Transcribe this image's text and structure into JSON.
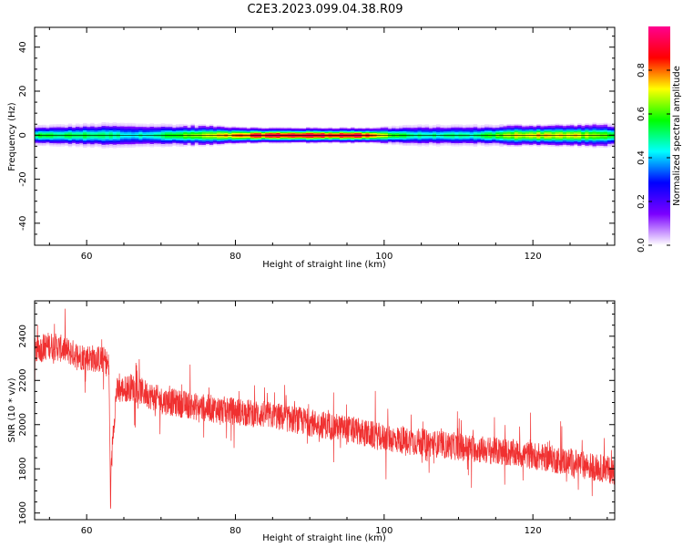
{
  "title": "C2E3.2023.099.04.38.R09",
  "chart_data": [
    {
      "type": "heatmap",
      "xlabel": "Height of straight line (km)",
      "ylabel": "Frequency (Hz)",
      "xlim": [
        53,
        131
      ],
      "ylim": [
        -50,
        49
      ],
      "xticks": [
        60,
        80,
        100,
        120
      ],
      "yticks": [
        -40,
        -20,
        0,
        20,
        40
      ],
      "grid": false,
      "band": {
        "center_hz": 0,
        "half_width_hz": [
          {
            "x": 53,
            "w": 2.5
          },
          {
            "x": 63,
            "w": 3.5
          },
          {
            "x": 75,
            "w": 2.8
          },
          {
            "x": 83,
            "w": 1.6
          },
          {
            "x": 98,
            "w": 1.6
          },
          {
            "x": 103,
            "w": 2.6
          },
          {
            "x": 115,
            "w": 2.8
          },
          {
            "x": 125,
            "w": 3.0
          },
          {
            "x": 131,
            "w": 3.5
          }
        ],
        "peak_amplitude": [
          {
            "x": 53,
            "a": 0.55
          },
          {
            "x": 62,
            "a": 0.55
          },
          {
            "x": 66,
            "a": 0.45
          },
          {
            "x": 76,
            "a": 0.7
          },
          {
            "x": 80,
            "a": 0.8
          },
          {
            "x": 84,
            "a": 0.95
          },
          {
            "x": 96,
            "a": 0.95
          },
          {
            "x": 100,
            "a": 0.7
          },
          {
            "x": 104,
            "a": 0.5
          },
          {
            "x": 112,
            "a": 0.5
          },
          {
            "x": 118,
            "a": 0.75
          },
          {
            "x": 124,
            "a": 0.75
          },
          {
            "x": 131,
            "a": 0.6
          }
        ]
      },
      "colorbar": {
        "label": "Normalized spectral amplitude",
        "range": [
          0,
          1
        ],
        "ticks": [
          0.0,
          0.2,
          0.4,
          0.6,
          0.8
        ],
        "tick_labels": [
          "0.0",
          "0.2",
          "0.4",
          "0.6",
          "0.8"
        ],
        "colormap": [
          "#ffffff",
          "#7b00ff",
          "#0000ff",
          "#00ffff",
          "#00ff00",
          "#ffff00",
          "#ff0000",
          "#ff0090"
        ]
      }
    },
    {
      "type": "line",
      "xlabel": "Height of straight line (km)",
      "ylabel": "SNR (10 * v/v)",
      "xlim": [
        53,
        131
      ],
      "ylim": [
        1570,
        2560
      ],
      "xticks": [
        60,
        80,
        100,
        120
      ],
      "yticks": [
        1600,
        1800,
        2000,
        2200,
        2400
      ],
      "grid": false,
      "color": "#f03030",
      "series": [
        {
          "x": [
            53,
            55,
            57,
            59,
            61,
            62.5,
            63.0,
            63.2,
            63.5,
            64,
            66,
            70,
            75,
            80,
            85,
            90,
            95,
            100,
            105,
            110,
            115,
            120,
            125,
            131
          ],
          "y": [
            2330,
            2360,
            2340,
            2310,
            2300,
            2290,
            2260,
            1650,
            1950,
            2150,
            2170,
            2110,
            2080,
            2060,
            2040,
            2010,
            1980,
            1940,
            1920,
            1900,
            1880,
            1860,
            1830,
            1790
          ],
          "noise": 90
        }
      ]
    }
  ]
}
